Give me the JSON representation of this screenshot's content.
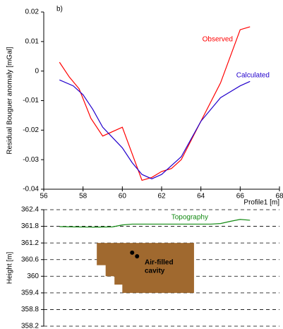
{
  "chart_data": [
    {
      "type": "line",
      "panel_label": "b)",
      "ylabel": "Residual Bouguer anomaly [mGal]",
      "xlabel": "Profile1 [m]",
      "xlim": [
        56,
        68
      ],
      "xticks": [
        56,
        58,
        60,
        62,
        64,
        66,
        68
      ],
      "ylim": [
        -0.04,
        0.02
      ],
      "yticks": [
        -0.04,
        -0.03,
        -0.02,
        -0.01,
        0,
        0.01,
        0.02
      ],
      "series": [
        {
          "name": "Observed",
          "color": "#ff0000",
          "x": [
            56.8,
            57.3,
            57.8,
            58.4,
            59,
            60,
            61,
            61.5,
            62,
            62.5,
            63,
            64,
            65,
            66,
            66.5
          ],
          "values": [
            0.003,
            -0.002,
            -0.006,
            -0.016,
            -0.022,
            -0.019,
            -0.037,
            -0.036,
            -0.034,
            -0.033,
            -0.03,
            -0.017,
            -0.004,
            0.014,
            0.015
          ]
        },
        {
          "name": "Calculated",
          "color": "#2200cc",
          "x": [
            56.8,
            57.5,
            58,
            58.5,
            59,
            60,
            60.5,
            61,
            61.5,
            62,
            63,
            64,
            65,
            66,
            66.5
          ],
          "values": [
            -0.003,
            -0.005,
            -0.008,
            -0.013,
            -0.019,
            -0.026,
            -0.031,
            -0.035,
            -0.0365,
            -0.035,
            -0.029,
            -0.017,
            -0.009,
            -0.005,
            -0.0035
          ]
        }
      ]
    },
    {
      "type": "section",
      "ylabel": "Height [m]",
      "xlim": [
        56,
        68
      ],
      "ylim": [
        358.2,
        362.4
      ],
      "yticks": [
        358.2,
        358.8,
        359.4,
        360,
        360.6,
        361.2,
        361.8,
        362.4
      ],
      "grid": true,
      "series": [
        {
          "name": "Topography",
          "color": "#138a13",
          "x": [
            56.8,
            57.5,
            58.5,
            59.5,
            60,
            60.5,
            61.5,
            63,
            64.5,
            65,
            65.5,
            66,
            66.5
          ],
          "values": [
            361.79,
            361.78,
            361.77,
            361.78,
            361.85,
            361.88,
            361.88,
            361.88,
            361.88,
            361.9,
            361.98,
            362.05,
            362.02
          ]
        }
      ],
      "cavity": {
        "label": [
          "Air-filled",
          "cavity"
        ],
        "color": "#a0692f",
        "x": [
          58.7,
          63.65,
          63.65,
          60.0,
          60.0,
          59.6,
          59.6,
          59.15,
          59.15,
          58.7
        ],
        "y": [
          361.2,
          361.2,
          359.4,
          359.4,
          359.7,
          359.7,
          360.0,
          360.0,
          360.4,
          360.4
        ]
      },
      "points": {
        "x": [
          60.5,
          60.75
        ],
        "y": [
          360.85,
          360.72
        ]
      }
    }
  ]
}
